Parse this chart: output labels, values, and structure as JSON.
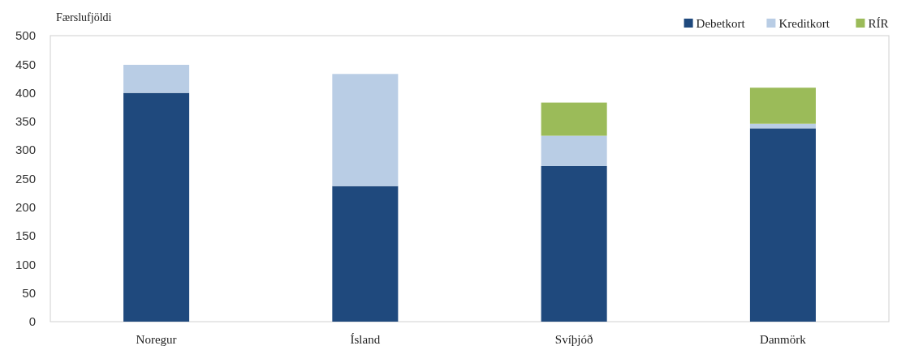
{
  "chart_data": {
    "type": "bar",
    "stacked": true,
    "ylabel": "Færslufjöldi",
    "categories": [
      "Noregur",
      "Ísland",
      "Svíþjóð",
      "Danmörk"
    ],
    "series": [
      {
        "name": "Debetkort",
        "color": "#1f497d",
        "values": [
          400,
          237,
          272,
          338
        ]
      },
      {
        "name": "Kreditkort",
        "color": "#b9cde5",
        "values": [
          49,
          196,
          53,
          8
        ]
      },
      {
        "name": "RÍR",
        "color": "#9bbb59",
        "values": [
          0,
          0,
          58,
          63
        ]
      }
    ],
    "ylim": [
      0,
      500
    ],
    "yticks": [
      0,
      50,
      100,
      150,
      200,
      250,
      300,
      350,
      400,
      450,
      500
    ],
    "grid": false,
    "legend": "top right"
  }
}
